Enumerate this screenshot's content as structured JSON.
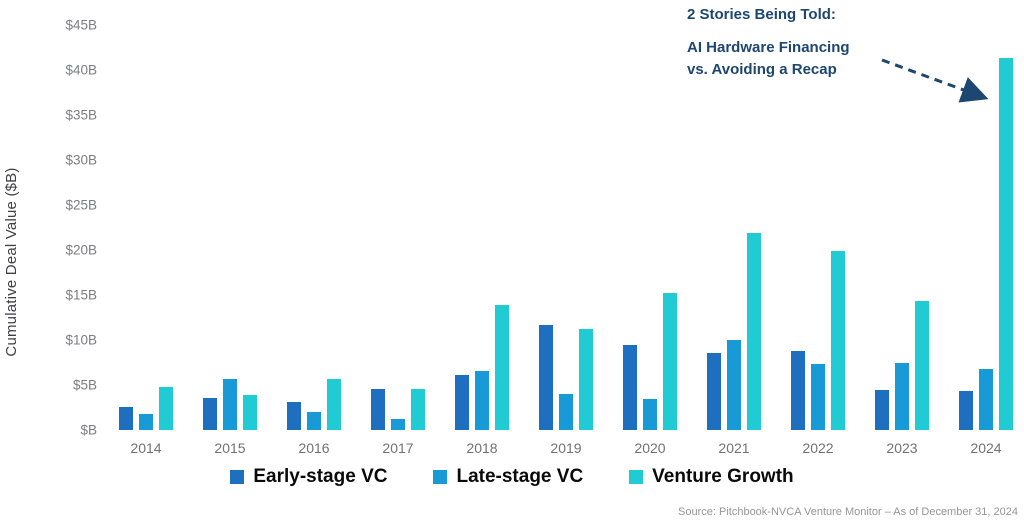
{
  "annotation": {
    "title": "2 Stories Being Told:",
    "line1": "AI Hardware Financing",
    "line2": "vs. Avoiding a Recap"
  },
  "source": "Source: Pitchbook-NVCA Venture Monitor – As of December 31, 2024",
  "colors": {
    "early_stage": "#1e6fc0",
    "late_stage": "#189ad6",
    "venture_growth": "#20cbd3",
    "annotation_navy": "#1d4670",
    "axis_gray": "#7d7e82"
  },
  "chart_data": {
    "type": "bar",
    "title": "",
    "xlabel": "",
    "ylabel": "Cumulative Deal Value ($B)",
    "ylim": [
      0,
      45
    ],
    "ytick_step": 5,
    "grid": false,
    "legend_position": "bottom",
    "yticks": [
      {
        "label": "$B",
        "value": 0
      },
      {
        "label": "$5B",
        "value": 5
      },
      {
        "label": "$10B",
        "value": 10
      },
      {
        "label": "$15B",
        "value": 15
      },
      {
        "label": "$20B",
        "value": 20
      },
      {
        "label": "$25B",
        "value": 25
      },
      {
        "label": "$30B",
        "value": 30
      },
      {
        "label": "$35B",
        "value": 35
      },
      {
        "label": "$40B",
        "value": 40
      },
      {
        "label": "$45B",
        "value": 45
      }
    ],
    "categories": [
      "2014",
      "2015",
      "2016",
      "2017",
      "2018",
      "2019",
      "2020",
      "2021",
      "2022",
      "2023",
      "2024"
    ],
    "series": [
      {
        "name": "Early-stage VC",
        "color": "#1e6fc0",
        "values": [
          2.6,
          3.6,
          3.1,
          4.6,
          6.1,
          11.7,
          9.4,
          8.6,
          8.8,
          4.5,
          4.3
        ]
      },
      {
        "name": "Late-stage VC",
        "color": "#189ad6",
        "values": [
          1.8,
          5.7,
          2.0,
          1.2,
          6.6,
          4.0,
          3.5,
          10.0,
          7.3,
          7.4,
          6.8
        ]
      },
      {
        "name": "Venture Growth",
        "color": "#20cbd3",
        "values": [
          4.8,
          3.9,
          5.7,
          4.6,
          13.9,
          11.2,
          15.2,
          21.9,
          19.9,
          14.3,
          41.3
        ]
      }
    ]
  }
}
